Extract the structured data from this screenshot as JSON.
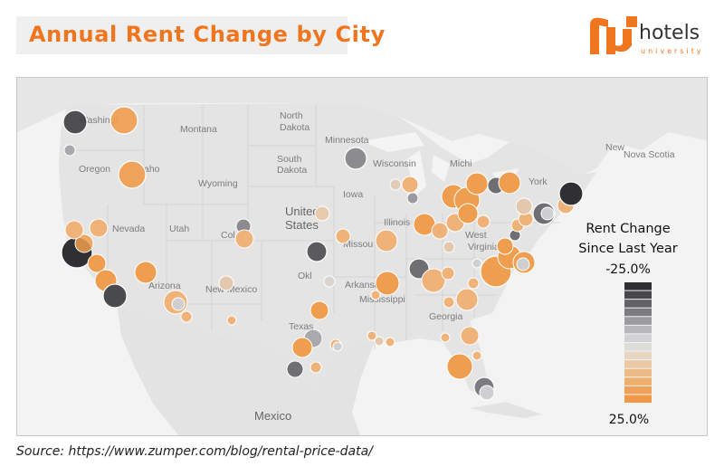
{
  "title": "Annual Rent Change by City",
  "logo": {
    "word": "hotels",
    "sub": "university"
  },
  "source": "Source: https://www.zumper.com/blog/rental-price-data/",
  "legend": {
    "title_line1": "Rent Change",
    "title_line2": "Since Last Year",
    "top": "-25.0%",
    "bottom": "25.0%",
    "colors": [
      "#2e2e33",
      "#47474c",
      "#616166",
      "#7b7b80",
      "#9a9a9f",
      "#b8b8bc",
      "#d2d2d4",
      "#dedcd8",
      "#e7d6c4",
      "#ebc9a4",
      "#edbb86",
      "#eeae6d",
      "#efa257",
      "#f09a48"
    ]
  },
  "colors": {
    "accent": "#f0751f",
    "land": "#e7e7e7",
    "water": "#f6f6f6"
  },
  "map_labels": {
    "washington": "Washingt",
    "montana": "Montana",
    "north_dakota_1": "North",
    "north_dakota_2": "Dakota",
    "minnesota": "Minnesota",
    "south_dakota_1": "South",
    "south_dakota_2": "Dakota",
    "wisconsin": "Wisconsin",
    "michigan": "Michi",
    "oregon": "Oregon",
    "idaho": "aho",
    "wyoming": "Wyoming",
    "iowa": "Iowa",
    "new_york": "York",
    "new_brunswick": "New",
    "nova_scotia": "Nova Scotia",
    "nevada": "Nevada",
    "utah": "Utah",
    "colorado": "Col",
    "us_1": "United",
    "us_2": "States",
    "illinois": "Illinois",
    "missouri": "Missou",
    "west_virginia": "West",
    "virginia": "Virginia",
    "oklahoma": "Okl",
    "arkansas": "Arkansas",
    "arizona": "Arizona",
    "new_mexico": "New Mexico",
    "mississippi": "Mississippi",
    "georgia": "Georgia",
    "texas": "Texas",
    "mexico": "Mexico"
  },
  "cities": [
    {
      "v": 25.0,
      "size": "L"
    },
    {
      "v": -25.0,
      "size": "L"
    },
    {
      "v": 22.0,
      "size": "L"
    },
    {
      "v": 18.0,
      "size": "L"
    },
    {
      "v": -15.0,
      "size": "L"
    },
    {
      "v": 20.0,
      "size": "L"
    },
    {
      "v": -22.0,
      "size": "L"
    },
    {
      "v": 20.0,
      "size": "L"
    },
    {
      "v": 15.0,
      "size": "L"
    },
    {
      "v": -18.0,
      "size": "L"
    },
    {
      "v": 22.0,
      "size": "L"
    },
    {
      "v": 10.0,
      "size": "M"
    }
  ]
}
